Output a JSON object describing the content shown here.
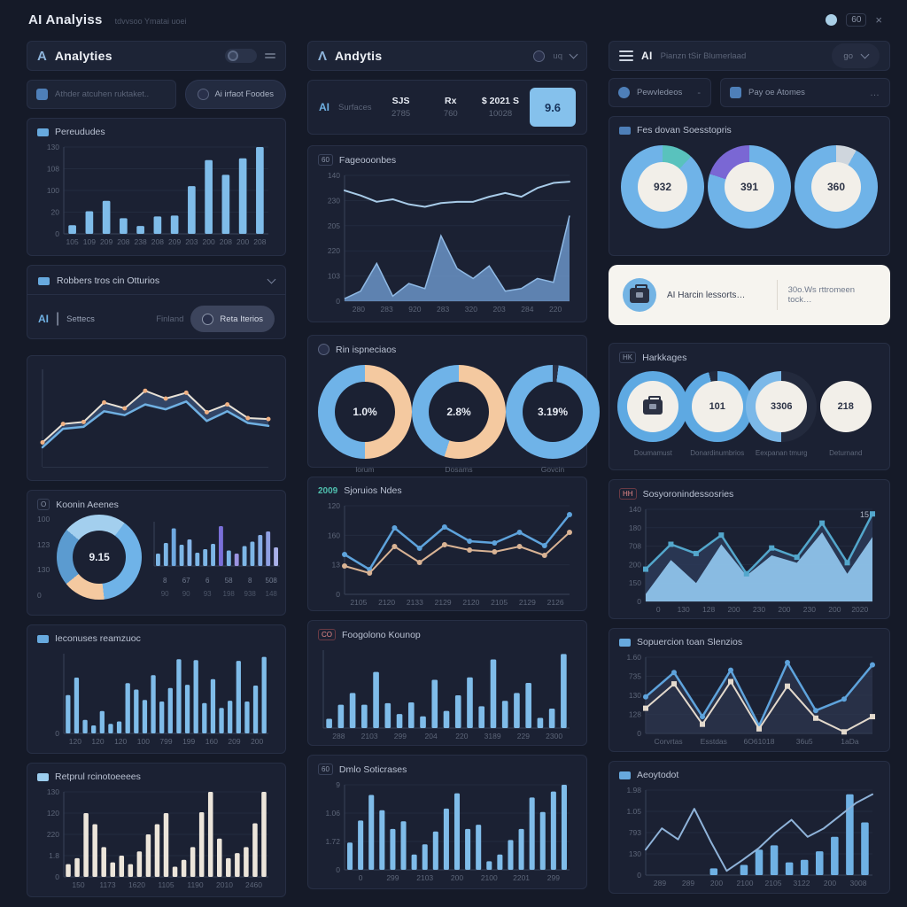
{
  "topbar": {
    "title": "AI Analyiss",
    "subtitle": "tdvvsoo  Ymatai uoei",
    "badge": "60",
    "close": "×"
  },
  "left": {
    "header": {
      "logo": "A",
      "title": "Analyties"
    },
    "search": {
      "text": "Athder atcuhen ruktaket..",
      "button": "Ai irfaot Foodes"
    },
    "bars1": {
      "legend": "Pereududes"
    },
    "section": {
      "title": "Robbers tros cin Otturios",
      "ai": "AI",
      "name": "Settecs",
      "status": "Finland",
      "button": "Reta Iterios"
    },
    "koonin": {
      "title": "Koonin Aeenes",
      "yticks": [
        "100",
        "123",
        "130",
        "0"
      ],
      "table_row1": [
        "8",
        "67",
        "6",
        "58",
        "8",
        "508"
      ],
      "table_row2": [
        "90",
        "90",
        "93",
        "198",
        "938",
        "148"
      ]
    },
    "bars2": {
      "title": "Ieconuses reamzuoc"
    },
    "bars3": {
      "title": "Retprul rcinotoeeees"
    }
  },
  "middle": {
    "header": {
      "logo": "Λ",
      "title": "Andytis",
      "mini": "uq"
    },
    "stats": {
      "brand": "AI",
      "name": "Surfaces",
      "items": [
        {
          "label": "SJS",
          "value": "2785"
        },
        {
          "label": "Rx",
          "value": "760"
        },
        {
          "label": "$ 2021 S",
          "value": "10028"
        }
      ],
      "button": "9.6"
    },
    "area": {
      "badge": "60",
      "title": "Fageooonbes"
    },
    "donuts": {
      "title": "Rin ispneciaos"
    },
    "lines": {
      "prefix": "2009",
      "title": "Sjoruios Ndes"
    },
    "bars2": {
      "badge": "CO",
      "title": "Foogolono Kounop"
    },
    "bars3": {
      "badge": "60",
      "title": "Dmlo Soticrases"
    }
  },
  "right": {
    "header": {
      "brand": "AI",
      "label": "Pianzn tSir Blumerlaad",
      "dropdown": "go"
    },
    "mini_a": {
      "label": "Pewvledeos",
      "more": "-"
    },
    "mini_b": {
      "label": "Pay oe Atomes",
      "more": "…"
    },
    "donuts": {
      "title": "Fes dovan Soesstopris"
    },
    "card": {
      "text1": "AI Harcin lessorts…",
      "text2": "30o.Ws rttromeen tock…"
    },
    "rings": {
      "title": "Harkkages"
    },
    "area": {
      "badge": "HH",
      "title": "Sosyoronindessosries"
    },
    "zigzag": {
      "title": "Sopuercion toan Slenzios"
    },
    "combo": {
      "title": "Aeoytodot"
    }
  },
  "charts": {
    "l_bars": {
      "type": "xy",
      "yticks": [
        "130",
        "108",
        "100",
        "20",
        "0"
      ],
      "xticks": [
        "105",
        "109",
        "209",
        "208",
        "238",
        "208",
        "209",
        "203",
        "200",
        "208",
        "200",
        "208"
      ],
      "series": [
        {
          "kind": "bar",
          "color": "#7fbce9",
          "bw": 0.45,
          "values": [
            10,
            26,
            38,
            18,
            9,
            20,
            21,
            55,
            85,
            68,
            87,
            100
          ]
        }
      ]
    },
    "l_dual": {
      "type": "xy",
      "series": [
        {
          "kind": "area",
          "fill": "#46658f",
          "opacity": 0.55,
          "values": [
            25,
            44,
            46,
            66,
            60,
            78,
            70,
            76,
            56,
            64,
            50,
            49
          ]
        },
        {
          "kind": "area",
          "fill": "#1b2133",
          "opacity": 1,
          "values": [
            20,
            39,
            41,
            57,
            53,
            64,
            59,
            67,
            47,
            57,
            45,
            42
          ]
        },
        {
          "kind": "line",
          "color": "#e9e2d6",
          "width": 2,
          "marker": "circle",
          "markerColor": "#f0b183",
          "markerR": 2.5,
          "values": [
            25,
            44,
            46,
            66,
            60,
            78,
            70,
            76,
            56,
            64,
            50,
            49
          ]
        },
        {
          "kind": "line",
          "color": "#6fb0e2",
          "width": 2.5,
          "values": [
            20,
            39,
            41,
            57,
            53,
            64,
            59,
            67,
            47,
            57,
            45,
            42
          ]
        }
      ]
    },
    "l_koonin_donut": {
      "type": "donuts",
      "size": 96,
      "hole": 0.62,
      "items": [
        {
          "value": "9.15",
          "from": -50,
          "center": "#1b2133",
          "text": "#e8ecf4",
          "segments": [
            {
              "color": "#a3cfee",
              "pct": 24
            },
            {
              "color": "#6fb3e8",
              "pct": 38
            },
            {
              "color": "#f4c9a0",
              "pct": 16
            },
            {
              "color": "#5b9bd0",
              "pct": 22
            }
          ]
        }
      ]
    },
    "l_koonin_bars": {
      "type": "xy",
      "series": [
        {
          "kind": "bar",
          "bw": 0.55,
          "colors": [
            "#7db6e6",
            "#7db6e6",
            "#6fa9e0",
            "#7db6e6",
            "#86b6ea",
            "#7db6e6",
            "#7db6e6",
            "#7db6e6",
            "#7a6fd9",
            "#7db6e6",
            "#9b93e0",
            "#7db6e6",
            "#7db6e6",
            "#86aee6",
            "#8e9fe2",
            "#a9b0e8"
          ],
          "values": [
            28,
            52,
            85,
            48,
            60,
            30,
            38,
            50,
            90,
            35,
            28,
            45,
            55,
            70,
            78,
            42
          ]
        }
      ]
    },
    "l_bars2": {
      "type": "xy",
      "yticks": [
        "0"
      ],
      "xticks": [
        "120",
        "120",
        "120",
        "100",
        "799",
        "199",
        "160",
        "209",
        "200"
      ],
      "series": [
        {
          "kind": "bar",
          "color": "#7fbce9",
          "bw": 0.55,
          "values": [
            48,
            70,
            17,
            10,
            28,
            12,
            15,
            63,
            55,
            42,
            73,
            40,
            57,
            93,
            61,
            92,
            38,
            68,
            32,
            41,
            91,
            40,
            60,
            96
          ]
        }
      ]
    },
    "l_bars3": {
      "type": "xy",
      "yticks": [
        "130",
        "120",
        "220",
        "1.8",
        "0"
      ],
      "xticks": [
        "150",
        "1173",
        "1620",
        "1105",
        "1190",
        "2010",
        "2460"
      ],
      "series": [
        {
          "kind": "bar",
          "color": "#ece5da",
          "bw": 0.55,
          "values": [
            15,
            22,
            75,
            62,
            35,
            17,
            25,
            15,
            30,
            50,
            62,
            75,
            12,
            20,
            35,
            76,
            100,
            45,
            22,
            28,
            35,
            63,
            100
          ]
        }
      ]
    },
    "m_area": {
      "type": "xy",
      "yticks": [
        "140",
        "230",
        "205",
        "220",
        "103",
        "0"
      ],
      "xticks": [
        "280",
        "283",
        "920",
        "283",
        "320",
        "203",
        "284",
        "220"
      ],
      "series": [
        {
          "kind": "area",
          "fill": "#6f9bd0",
          "opacity": 0.8,
          "stroke": "#8fb9e4",
          "values": [
            2,
            8,
            30,
            4,
            14,
            10,
            52,
            26,
            18,
            28,
            8,
            10,
            18,
            15,
            68
          ]
        },
        {
          "kind": "line",
          "color": "#a8cbe8",
          "width": 2,
          "values": [
            88,
            84,
            79,
            81,
            77,
            75,
            78,
            79,
            79,
            83,
            86,
            83,
            90,
            94,
            95
          ]
        }
      ]
    },
    "m_donuts": {
      "type": "donuts",
      "size": 106,
      "hole": 0.64,
      "items": [
        {
          "value": "1.0%",
          "label": "lorum",
          "center": "#1b2133",
          "text": "#e8ecf4",
          "segments": [
            {
              "color": "#f4c9a0",
              "pct": 50
            },
            {
              "color": "#6fb3e8",
              "pct": 50
            }
          ]
        },
        {
          "value": "2.8%",
          "label": "Dosams",
          "center": "#1b2133",
          "text": "#e8ecf4",
          "segments": [
            {
              "color": "#f4c9a0",
              "pct": 55
            },
            {
              "color": "#6fb3e8",
              "pct": 45
            }
          ]
        },
        {
          "value": "3.19%",
          "label": "Govcin",
          "center": "#1b2133",
          "text": "#e8ecf4",
          "segments": [
            {
              "color": "#2a3247",
              "pct": 2
            },
            {
              "color": "#6fb3e8",
              "pct": 98
            }
          ]
        }
      ]
    },
    "m_lines": {
      "type": "xy",
      "yticks": [
        "120",
        "160",
        "13",
        "0"
      ],
      "xticks": [
        "2105",
        "2120",
        "2133",
        "2129",
        "2120",
        "2105",
        "2129",
        "2126"
      ],
      "series": [
        {
          "kind": "line",
          "color": "#5ea3dc",
          "width": 2.5,
          "marker": "circle",
          "values": [
            45,
            28,
            75,
            52,
            76,
            60,
            58,
            70,
            55,
            90
          ]
        },
        {
          "kind": "line",
          "color": "#d9b394",
          "width": 2,
          "marker": "circle",
          "values": [
            32,
            24,
            54,
            36,
            56,
            50,
            48,
            54,
            44,
            70
          ]
        }
      ]
    },
    "m_bars2": {
      "type": "xy",
      "xticks": [
        "288",
        "2103",
        "299",
        "204",
        "220",
        "3189",
        "229",
        "2300"
      ],
      "series": [
        {
          "kind": "bar",
          "color": "#7fbce9",
          "bw": 0.5,
          "values": [
            12,
            30,
            45,
            30,
            72,
            32,
            18,
            33,
            15,
            62,
            22,
            42,
            65,
            28,
            88,
            35,
            45,
            58,
            13,
            25,
            95
          ]
        }
      ]
    },
    "m_bars3": {
      "type": "xy",
      "yticks": [
        "9",
        "1.06",
        "1.72",
        "0"
      ],
      "xticks": [
        "0",
        "299",
        "2103",
        "200",
        "2100",
        "2201",
        "299"
      ],
      "series": [
        {
          "kind": "bar",
          "color": "#7fbce9",
          "bw": 0.5,
          "values": [
            32,
            58,
            88,
            70,
            48,
            57,
            18,
            30,
            45,
            72,
            90,
            48,
            53,
            10,
            18,
            35,
            48,
            85,
            68,
            92,
            100
          ]
        }
      ]
    },
    "r_donuts": {
      "type": "donuts",
      "size": 94,
      "hole": 0.6,
      "items": [
        {
          "value": "932",
          "center": "#f2efe9",
          "text": "#2c3346",
          "segments": [
            {
              "color": "#59c2bd",
              "pct": 12
            },
            {
              "color": "#6fb3e8",
              "pct": 88
            }
          ]
        },
        {
          "value": "391",
          "center": "#f2efe9",
          "text": "#2c3346",
          "from": -72,
          "segments": [
            {
              "color": "#7a67d4",
              "pct": 20
            },
            {
              "color": "#6fb3e8",
              "pct": 80
            }
          ]
        },
        {
          "value": "360",
          "center": "#f2efe9",
          "text": "#2c3346",
          "segments": [
            {
              "color": "#cfd6dd",
              "pct": 8
            },
            {
              "color": "#6fb3e8",
              "pct": 92
            }
          ]
        }
      ]
    },
    "r_rings": {
      "type": "rings",
      "size": 80,
      "hole": 0.72,
      "track": "#232a3d",
      "items": [
        {
          "icon": "briefcase",
          "pct": 100,
          "ring": "#5ea9e2",
          "label": "Doumamust"
        },
        {
          "value": "101",
          "pct": 96,
          "ring": "#5ea9e2",
          "label": "Donardinumbrios"
        },
        {
          "value": "3306",
          "pct": 50,
          "from": 180,
          "ring": "#7bb8e8",
          "label": "Eexpanan tmurg"
        },
        {
          "value": "218",
          "pct": 0,
          "ring": "#5ea9e2",
          "label": "Deturnand"
        }
      ]
    },
    "r_area": {
      "type": "xy",
      "yticks": [
        "140",
        "180",
        "708",
        "200",
        "150",
        "0"
      ],
      "xticks": [
        "0",
        "130",
        "128",
        "200",
        "230",
        "200",
        "230",
        "200",
        "2020"
      ],
      "annotation": "15",
      "series": [
        {
          "kind": "area",
          "fill": "#2c3a58",
          "opacity": 0.85,
          "values": [
            35,
            62,
            52,
            72,
            30,
            58,
            48,
            85,
            42,
            95
          ]
        },
        {
          "kind": "area",
          "fill": "#8ec3ea",
          "opacity": 0.95,
          "values": [
            8,
            45,
            20,
            62,
            28,
            50,
            42,
            75,
            30,
            70
          ]
        },
        {
          "kind": "line",
          "color": "#53a7cc",
          "width": 2.5,
          "marker": "square",
          "values": [
            35,
            62,
            52,
            72,
            30,
            58,
            48,
            85,
            42,
            95
          ]
        }
      ]
    },
    "r_zigzag": {
      "type": "xy",
      "yticks": [
        "1.60",
        "735",
        "130",
        "128",
        "0"
      ],
      "xticks": [
        "Corvrtas",
        "Esstdas",
        "6O61018",
        "36u5",
        "1aDa"
      ],
      "series": [
        {
          "kind": "area",
          "fill": "#2e3750",
          "opacity": 0.7,
          "values": [
            48,
            80,
            22,
            83,
            10,
            93,
            30,
            45,
            90
          ]
        },
        {
          "kind": "line",
          "color": "#5ea3dc",
          "width": 2.5,
          "marker": "circle",
          "values": [
            48,
            80,
            22,
            83,
            10,
            93,
            30,
            45,
            90
          ]
        },
        {
          "kind": "line",
          "color": "#e3d9cc",
          "width": 2,
          "marker": "square",
          "values": [
            33,
            65,
            12,
            68,
            6,
            62,
            20,
            2,
            22
          ]
        }
      ]
    },
    "r_combo": {
      "type": "xy",
      "yticks": [
        "1.98",
        "1.05",
        "793",
        "130",
        "0"
      ],
      "xticks": [
        "289",
        "289",
        "200",
        "2100",
        "2105",
        "3122",
        "200",
        "3008"
      ],
      "series": [
        {
          "kind": "bar",
          "color": "#6fb1e4",
          "bw": 0.5,
          "values": [
            0,
            0,
            0,
            0,
            8,
            0,
            12,
            30,
            35,
            15,
            18,
            28,
            45,
            95,
            62
          ]
        },
        {
          "kind": "line",
          "color": "#8fb3d9",
          "width": 2,
          "values": [
            30,
            55,
            42,
            78,
            40,
            5,
            18,
            32,
            50,
            65,
            45,
            55,
            70,
            85,
            95
          ]
        }
      ]
    }
  }
}
